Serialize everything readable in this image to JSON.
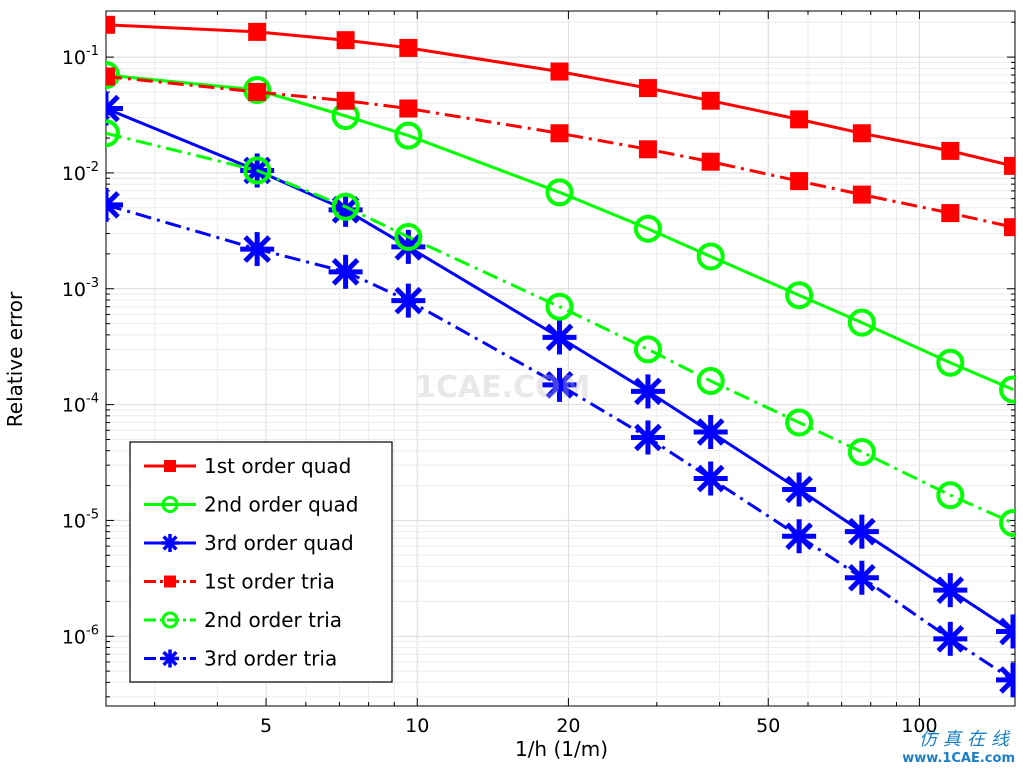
{
  "chart_data": {
    "type": "line",
    "xlabel": "1/h (1/m)",
    "ylabel": "Relative error",
    "xscale": "log",
    "yscale": "log",
    "xlim": [
      2.4,
      155
    ],
    "ylim": [
      2.5e-07,
      0.25
    ],
    "xticks": [
      5,
      10,
      20,
      50,
      100
    ],
    "yticks": [
      {
        "value": 0.1,
        "base": "10",
        "exp": "-1"
      },
      {
        "value": 0.01,
        "base": "10",
        "exp": "-2"
      },
      {
        "value": 0.001,
        "base": "10",
        "exp": "-3"
      },
      {
        "value": 0.0001,
        "base": "10",
        "exp": "-4"
      },
      {
        "value": 1e-05,
        "base": "10",
        "exp": "-5"
      },
      {
        "value": 1e-06,
        "base": "10",
        "exp": "-6"
      }
    ],
    "grid": true,
    "legend_position": "bottom-left",
    "x": [
      2.4,
      4.8,
      7.2,
      9.6,
      19.2,
      28.8,
      38.4,
      57.6,
      76.8,
      115.2,
      153.6
    ],
    "series": [
      {
        "name": "1st order quad",
        "color": "#ff0000",
        "marker": "square",
        "linestyle": "solid",
        "values": [
          0.19,
          0.165,
          0.14,
          0.12,
          0.075,
          0.054,
          0.042,
          0.029,
          0.022,
          0.0155,
          0.0115
        ]
      },
      {
        "name": "2nd order quad",
        "color": "#00ff00",
        "marker": "circle",
        "linestyle": "solid",
        "values": [
          0.07,
          0.052,
          0.031,
          0.021,
          0.0068,
          0.0033,
          0.0019,
          0.00088,
          0.00051,
          0.00023,
          0.000135
        ]
      },
      {
        "name": "3rd order quad",
        "color": "#0000ff",
        "marker": "asterisk",
        "linestyle": "solid",
        "values": [
          0.036,
          0.0105,
          0.0048,
          0.0023,
          0.00038,
          0.00013,
          5.8e-05,
          1.85e-05,
          8e-06,
          2.5e-06,
          1.1e-06
        ]
      },
      {
        "name": "1st order tria",
        "color": "#ff0000",
        "marker": "square",
        "linestyle": "dashdot",
        "values": [
          0.068,
          0.05,
          0.042,
          0.036,
          0.022,
          0.016,
          0.0125,
          0.0085,
          0.0065,
          0.0045,
          0.0034
        ]
      },
      {
        "name": "2nd order tria",
        "color": "#00ff00",
        "marker": "circle",
        "linestyle": "dashdot",
        "values": [
          0.022,
          0.0105,
          0.0051,
          0.0028,
          0.0007,
          0.0003,
          0.00016,
          7e-05,
          3.9e-05,
          1.65e-05,
          9.5e-06
        ]
      },
      {
        "name": "3rd order tria",
        "color": "#0000ff",
        "marker": "asterisk",
        "linestyle": "dashdot",
        "values": [
          0.0053,
          0.0022,
          0.0014,
          0.00079,
          0.000148,
          5.2e-05,
          2.3e-05,
          7.3e-06,
          3.2e-06,
          9.5e-07,
          4.2e-07
        ]
      }
    ]
  },
  "watermark": {
    "title": "仿真在线",
    "site": "www.1CAE.com",
    "center": "1CAE.COM"
  }
}
